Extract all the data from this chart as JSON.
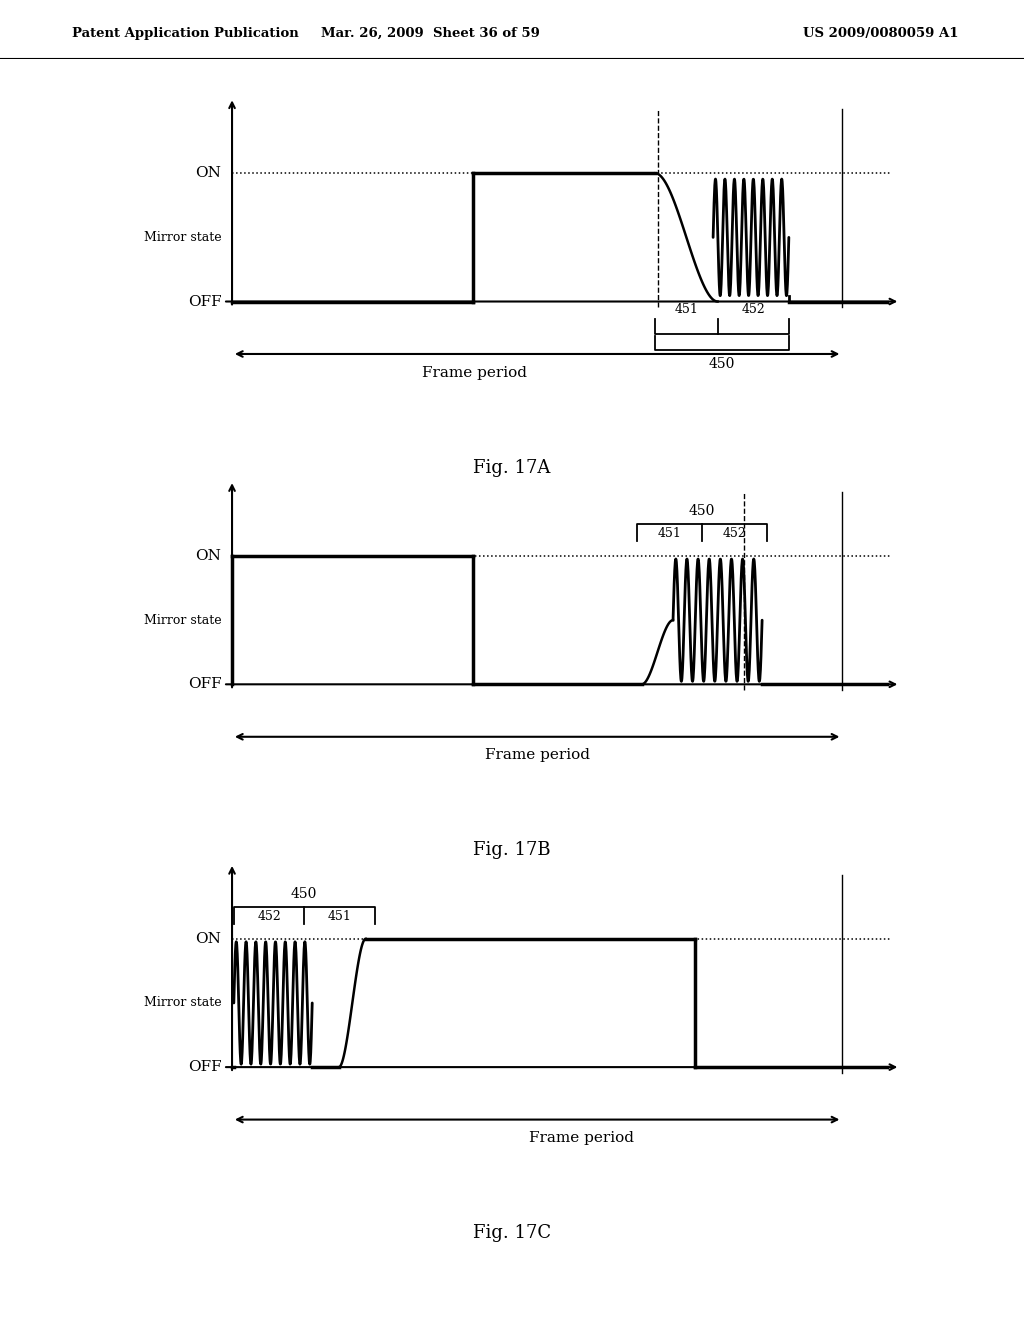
{
  "bg_color": "#ffffff",
  "text_color": "#000000",
  "header_left": "Patent Application Publication",
  "header_mid": "Mar. 26, 2009  Sheet 36 of 59",
  "header_right": "US 2009/0080059 A1",
  "fig_labels": [
    "Fig. 17A",
    "Fig. 17B",
    "Fig. 17C"
  ]
}
